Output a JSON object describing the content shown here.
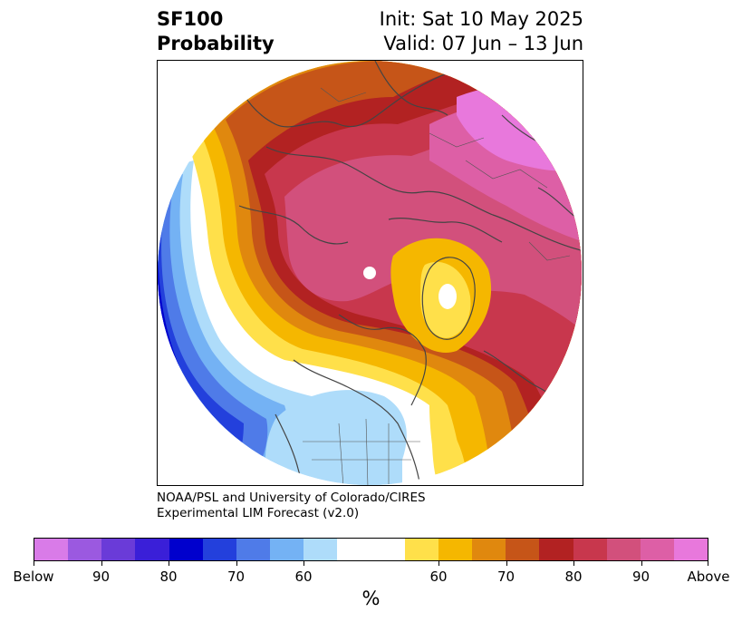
{
  "header": {
    "title_line1": "SF100",
    "title_line2": "Probability",
    "init_text": "Init: Sat 10 May 2025",
    "valid_text": "Valid: 07 Jun – 13 Jun"
  },
  "credit": {
    "line1": "NOAA/PSL and University of Colorado/CIRES",
    "line2": "Experimental LIM Forecast (v2.0)"
  },
  "colorbar": {
    "colors": [
      "#d97be8",
      "#9b59e0",
      "#6a3bd8",
      "#3a1fd8",
      "#0000cd",
      "#2340dc",
      "#4f7be8",
      "#74b2f4",
      "#aedcfa",
      "#ffffff",
      "#ffffff",
      "#ffe04a",
      "#f5b700",
      "#e0880e",
      "#c65518",
      "#b22222",
      "#c8374d",
      "#d2507c",
      "#dd5fa6",
      "#e878dc"
    ],
    "tick_labels": [
      "Below",
      "90",
      "80",
      "70",
      "60",
      "60",
      "70",
      "80",
      "90",
      "Above"
    ],
    "unit_label": "%"
  },
  "map": {
    "projection": "north-polar-stereographic",
    "fill_colors": {
      "below_60": "#aedcfa",
      "below_70": "#74b2f4",
      "below_80": "#4f7be8",
      "below_90": "#2340dc",
      "below_far": "#0000cd",
      "above_60": "#ffe04a",
      "above_60b": "#f5b700",
      "above_70": "#e0880e",
      "above_70b": "#c65518",
      "above_80": "#b22222",
      "above_80b": "#c8374d",
      "above_90": "#d2507c",
      "above_90b": "#dd5fa6",
      "above_max": "#e878dc"
    }
  }
}
